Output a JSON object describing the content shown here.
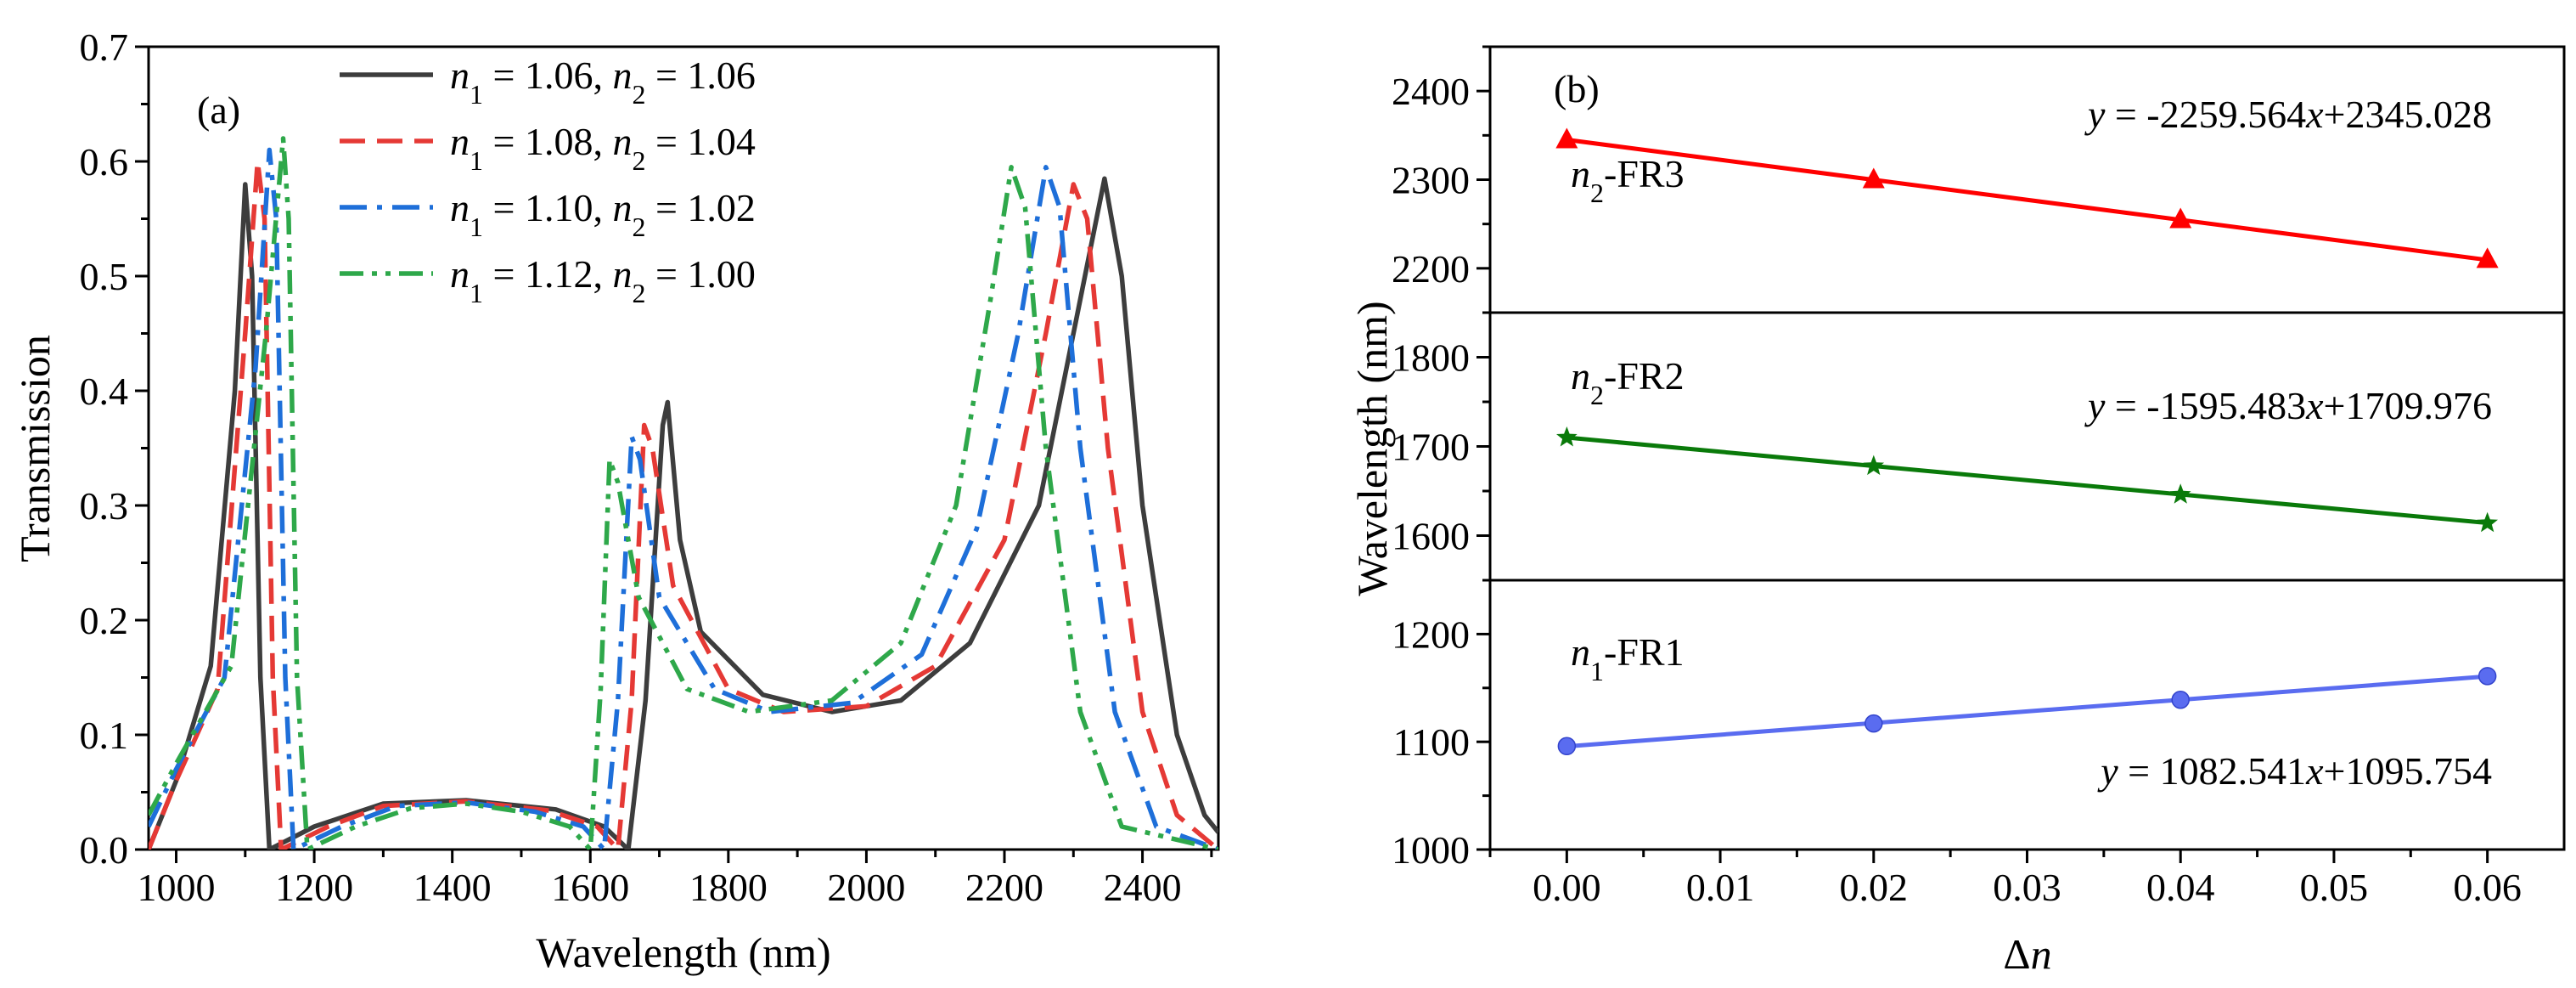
{
  "chart_data": [
    {
      "type": "line",
      "panel_label": "(a)",
      "xlabel": "Wavelength (nm)",
      "ylabel": "Transmission",
      "xlim": [
        960,
        2510
      ],
      "ylim": [
        0,
        0.7
      ],
      "x_ticks": [
        1000,
        1200,
        1400,
        1600,
        1800,
        2000,
        2200,
        2400
      ],
      "x_tick_labels": [
        "1000",
        "1200",
        "1400",
        "1600",
        "1800",
        "2000",
        "2200",
        "2400"
      ],
      "y_ticks": [
        0.0,
        0.1,
        0.2,
        0.3,
        0.4,
        0.5,
        0.6,
        0.7
      ],
      "y_tick_labels": [
        "0.0",
        "0.1",
        "0.2",
        "0.3",
        "0.4",
        "0.5",
        "0.6",
        "0.7"
      ],
      "legend_position": "top-center",
      "series": [
        {
          "name": "n1 = 1.06, n2 = 1.06",
          "legend": {
            "n1_sym": "n",
            "n1_sub": "1",
            "n1_val": " = 1.06, ",
            "n2_sym": "n",
            "n2_sub": "2",
            "n2_val": " = 1.06"
          },
          "color": "#3d3d3d",
          "style": "solid",
          "points": [
            [
              960,
              0.0
            ],
            [
              1000,
              0.06
            ],
            [
              1050,
              0.16
            ],
            [
              1085,
              0.4
            ],
            [
              1100,
              0.58
            ],
            [
              1110,
              0.5
            ],
            [
              1122,
              0.15
            ],
            [
              1135,
              0.0
            ],
            [
              1200,
              0.02
            ],
            [
              1300,
              0.04
            ],
            [
              1420,
              0.043
            ],
            [
              1550,
              0.035
            ],
            [
              1620,
              0.02
            ],
            [
              1655,
              0.0
            ],
            [
              1680,
              0.13
            ],
            [
              1705,
              0.37
            ],
            [
              1712,
              0.39
            ],
            [
              1730,
              0.27
            ],
            [
              1760,
              0.19
            ],
            [
              1850,
              0.135
            ],
            [
              1950,
              0.12
            ],
            [
              2050,
              0.13
            ],
            [
              2150,
              0.18
            ],
            [
              2250,
              0.3
            ],
            [
              2300,
              0.45
            ],
            [
              2345,
              0.585
            ],
            [
              2370,
              0.5
            ],
            [
              2400,
              0.3
            ],
            [
              2450,
              0.1
            ],
            [
              2490,
              0.03
            ],
            [
              2510,
              0.015
            ]
          ]
        },
        {
          "name": "n1 = 1.08, n2 = 1.04",
          "legend": {
            "n1_sym": "n",
            "n1_sub": "1",
            "n1_val": " = 1.08, ",
            "n2_sym": "n",
            "n2_sub": "2",
            "n2_val": " = 1.04"
          },
          "color": "#e53935",
          "style": "dash",
          "points": [
            [
              960,
              0.0
            ],
            [
              1000,
              0.06
            ],
            [
              1060,
              0.14
            ],
            [
              1100,
              0.45
            ],
            [
              1118,
              0.6
            ],
            [
              1128,
              0.55
            ],
            [
              1140,
              0.15
            ],
            [
              1152,
              0.0
            ],
            [
              1220,
              0.02
            ],
            [
              1300,
              0.038
            ],
            [
              1420,
              0.042
            ],
            [
              1540,
              0.034
            ],
            [
              1610,
              0.02
            ],
            [
              1640,
              0.0
            ],
            [
              1660,
              0.13
            ],
            [
              1678,
              0.37
            ],
            [
              1690,
              0.35
            ],
            [
              1720,
              0.23
            ],
            [
              1800,
              0.14
            ],
            [
              1880,
              0.12
            ],
            [
              2000,
              0.125
            ],
            [
              2100,
              0.16
            ],
            [
              2200,
              0.27
            ],
            [
              2260,
              0.45
            ],
            [
              2300,
              0.58
            ],
            [
              2320,
              0.55
            ],
            [
              2350,
              0.35
            ],
            [
              2400,
              0.12
            ],
            [
              2450,
              0.03
            ],
            [
              2510,
              0.0
            ]
          ]
        },
        {
          "name": "n1 = 1.10, n2 = 1.02",
          "legend": {
            "n1_sym": "n",
            "n1_sub": "1",
            "n1_val": " = 1.10, ",
            "n2_sym": "n",
            "n2_sub": "2",
            "n2_val": " = 1.02"
          },
          "color": "#1e6fd9",
          "style": "dashdot",
          "points": [
            [
              960,
              0.02
            ],
            [
              1000,
              0.07
            ],
            [
              1070,
              0.15
            ],
            [
              1115,
              0.42
            ],
            [
              1135,
              0.61
            ],
            [
              1145,
              0.55
            ],
            [
              1158,
              0.15
            ],
            [
              1170,
              0.0
            ],
            [
              1240,
              0.02
            ],
            [
              1320,
              0.038
            ],
            [
              1420,
              0.041
            ],
            [
              1520,
              0.033
            ],
            [
              1590,
              0.02
            ],
            [
              1620,
              0.0
            ],
            [
              1640,
              0.13
            ],
            [
              1660,
              0.36
            ],
            [
              1672,
              0.34
            ],
            [
              1700,
              0.22
            ],
            [
              1780,
              0.14
            ],
            [
              1860,
              0.12
            ],
            [
              1980,
              0.128
            ],
            [
              2080,
              0.17
            ],
            [
              2160,
              0.28
            ],
            [
              2220,
              0.45
            ],
            [
              2260,
              0.595
            ],
            [
              2280,
              0.56
            ],
            [
              2310,
              0.35
            ],
            [
              2360,
              0.12
            ],
            [
              2420,
              0.02
            ],
            [
              2510,
              0.0
            ]
          ]
        },
        {
          "name": "n1 = 1.12, n2 = 1.00",
          "legend": {
            "n1_sym": "n",
            "n1_sub": "1",
            "n1_val": " = 1.12, ",
            "n2_sym": "n",
            "n2_sub": "2",
            "n2_val": " = 1.00"
          },
          "color": "#2ea84a",
          "style": "dashdotdot",
          "points": [
            [
              960,
              0.03
            ],
            [
              1000,
              0.075
            ],
            [
              1080,
              0.16
            ],
            [
              1130,
              0.45
            ],
            [
              1155,
              0.62
            ],
            [
              1163,
              0.55
            ],
            [
              1175,
              0.15
            ],
            [
              1190,
              0.0
            ],
            [
              1260,
              0.02
            ],
            [
              1340,
              0.036
            ],
            [
              1420,
              0.04
            ],
            [
              1500,
              0.033
            ],
            [
              1570,
              0.02
            ],
            [
              1600,
              0.0
            ],
            [
              1615,
              0.14
            ],
            [
              1628,
              0.34
            ],
            [
              1640,
              0.32
            ],
            [
              1670,
              0.22
            ],
            [
              1740,
              0.14
            ],
            [
              1830,
              0.12
            ],
            [
              1950,
              0.13
            ],
            [
              2050,
              0.18
            ],
            [
              2130,
              0.3
            ],
            [
              2180,
              0.48
            ],
            [
              2210,
              0.595
            ],
            [
              2230,
              0.56
            ],
            [
              2260,
              0.35
            ],
            [
              2310,
              0.12
            ],
            [
              2370,
              0.02
            ],
            [
              2510,
              0.0
            ]
          ]
        }
      ]
    },
    {
      "type": "scatter",
      "panel_label": "(b)",
      "xlabel_sym": "Δ",
      "xlabel_var": "n",
      "ylabel": "Wavelength (nm)",
      "xlim": [
        -0.005,
        0.065
      ],
      "x_ticks": [
        0.0,
        0.01,
        0.02,
        0.03,
        0.04,
        0.05,
        0.06
      ],
      "x_tick_labels": [
        "0.00",
        "0.01",
        "0.02",
        "0.03",
        "0.04",
        "0.05",
        "0.06"
      ],
      "subplots": [
        {
          "label_sym": "n",
          "label_sub": "2",
          "label_txt": "-FR3",
          "eq_y": "y",
          "eq_mid": " = -2259.564",
          "eq_x": "x",
          "eq_end": "+2345.028",
          "ylim": [
            2150,
            2450
          ],
          "y_ticks": [
            2200,
            2300,
            2400
          ],
          "y_tick_labels": [
            "2200",
            "2300",
            "2400"
          ],
          "color": "#ff0000",
          "marker": "triangle",
          "x": [
            0.0,
            0.02,
            0.04,
            0.06
          ],
          "y": [
            2345,
            2300,
            2255,
            2210
          ],
          "fit": {
            "slope": -2259.564,
            "intercept": 2345.028
          }
        },
        {
          "label_sym": "n",
          "label_sub": "2",
          "label_txt": "-FR2",
          "eq_y": "y",
          "eq_mid": " = -1595.483",
          "eq_x": "x",
          "eq_end": "+1709.976",
          "ylim": [
            1550,
            1850
          ],
          "y_ticks": [
            1600,
            1700,
            1800
          ],
          "y_tick_labels": [
            "1600",
            "1700",
            "1800"
          ],
          "color": "#0a7a0a",
          "marker": "star",
          "x": [
            0.0,
            0.02,
            0.04,
            0.06
          ],
          "y": [
            1710,
            1678,
            1646,
            1614
          ],
          "fit": {
            "slope": -1595.483,
            "intercept": 1709.976
          }
        },
        {
          "label_sym": "n",
          "label_sub": "1",
          "label_txt": "-FR1",
          "eq_y": "y",
          "eq_mid": " = 1082.541",
          "eq_x": "x",
          "eq_end": "+1095.754",
          "ylim": [
            1000,
            1250
          ],
          "y_ticks": [
            1000,
            1100,
            1200
          ],
          "y_tick_labels": [
            "1000",
            "1100",
            "1200"
          ],
          "color": "#5a6cf0",
          "marker": "circle",
          "x": [
            0.0,
            0.02,
            0.04,
            0.06
          ],
          "y": [
            1096,
            1117,
            1139,
            1161
          ],
          "fit": {
            "slope": 1082.541,
            "intercept": 1095.754
          }
        }
      ]
    }
  ]
}
